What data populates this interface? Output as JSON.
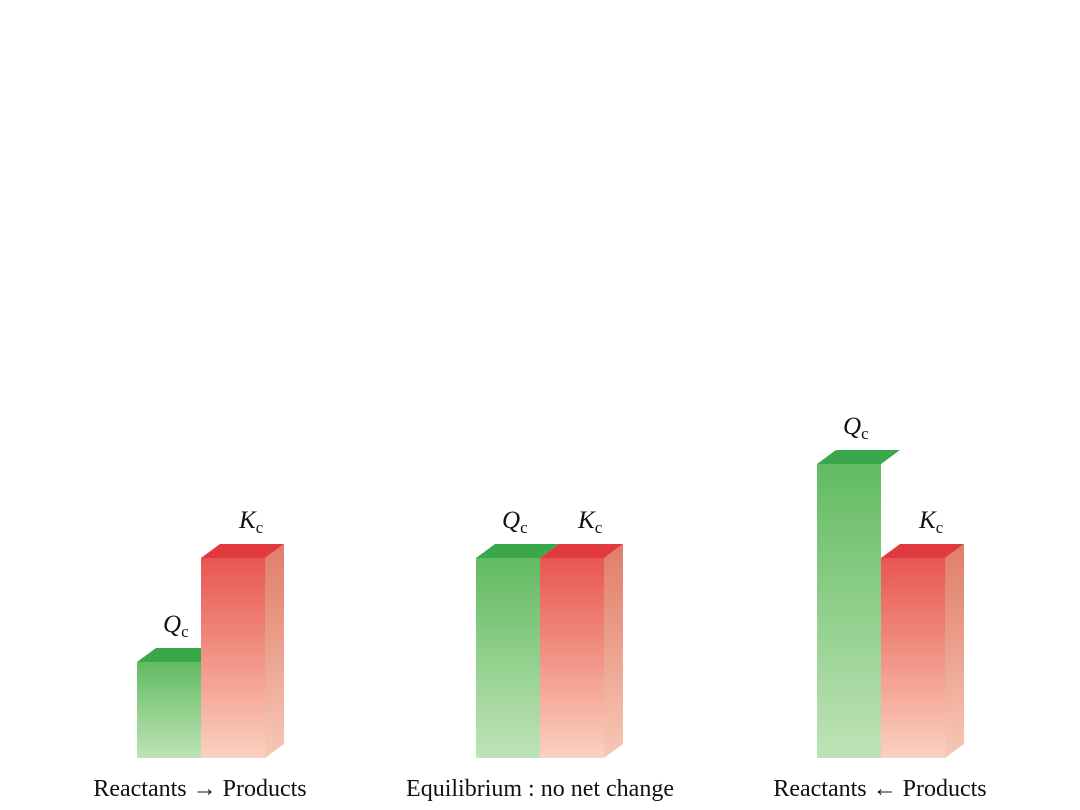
{
  "colors": {
    "q_top": "#3aa84a",
    "q_front_top": "#62bb62",
    "q_front_bottom": "#bfe3b7",
    "k_top": "#e0393f",
    "k_front_top": "#e8564f",
    "k_front_bottom": "#fbd1bf",
    "k_side_top": "#e07d68",
    "k_side_bottom": "#f7c8b6"
  },
  "symbols": {
    "q_main": "Q",
    "k_main": "K",
    "subscript": "c"
  },
  "panels": [
    {
      "caption": "Reactants →  Products",
      "q_value": 0.48,
      "k_value": 1.0
    },
    {
      "caption": "Equilibrium : no net change",
      "q_value": 1.0,
      "k_value": 1.0
    },
    {
      "caption": "Reactants ←  Products",
      "q_value": 1.47,
      "k_value": 1.0
    }
  ]
}
